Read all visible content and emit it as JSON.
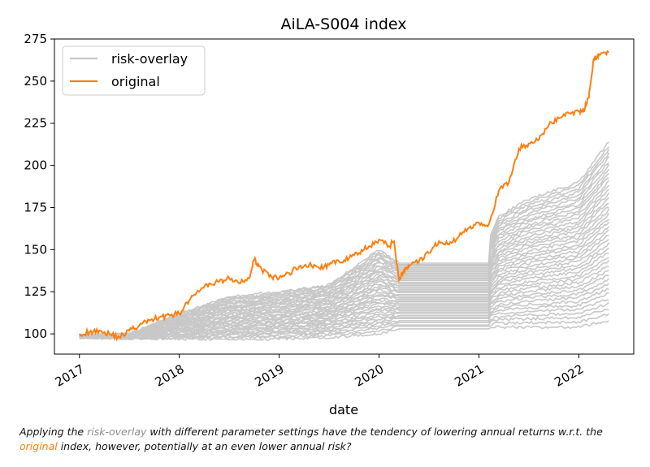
{
  "chart_data": {
    "type": "line",
    "title": "AiLA-S004 index",
    "xlabel": "date",
    "ylabel": "",
    "x_ticks": [
      "2017",
      "2018",
      "2019",
      "2020",
      "2021",
      "2022"
    ],
    "y_ticks": [
      100,
      125,
      150,
      175,
      200,
      225,
      250,
      275
    ],
    "xlim": [
      2016.75,
      2022.55
    ],
    "ylim": [
      88,
      275
    ],
    "legend_position": "top-left",
    "colors": {
      "risk_overlay": "#c8c8c8",
      "original": "#ff7f0e"
    },
    "series": [
      {
        "name": "original",
        "x": [
          2017.0,
          2017.1,
          2017.2,
          2017.3,
          2017.4,
          2017.5,
          2017.6,
          2017.7,
          2017.8,
          2017.9,
          2018.0,
          2018.1,
          2018.2,
          2018.3,
          2018.4,
          2018.5,
          2018.6,
          2018.7,
          2018.75,
          2018.8,
          2018.9,
          2019.0,
          2019.1,
          2019.2,
          2019.3,
          2019.4,
          2019.5,
          2019.6,
          2019.7,
          2019.8,
          2019.9,
          2020.0,
          2020.1,
          2020.15,
          2020.2,
          2020.25,
          2020.3,
          2020.4,
          2020.5,
          2020.6,
          2020.7,
          2020.8,
          2020.9,
          2021.0,
          2021.1,
          2021.2,
          2021.3,
          2021.4,
          2021.5,
          2021.6,
          2021.7,
          2021.8,
          2021.9,
          2022.0,
          2022.05,
          2022.1,
          2022.15,
          2022.2,
          2022.3
        ],
        "y": [
          100,
          101,
          102,
          100,
          98,
          102,
          105,
          108,
          110,
          111,
          112,
          120,
          125,
          130,
          131,
          133,
          130,
          133,
          144,
          140,
          134,
          133,
          136,
          140,
          141,
          139,
          141,
          143,
          145,
          148,
          152,
          156,
          152,
          155,
          132,
          138,
          140,
          143,
          148,
          155,
          153,
          158,
          163,
          166,
          165,
          185,
          190,
          210,
          213,
          215,
          224,
          228,
          231,
          232,
          233,
          240,
          263,
          266,
          267
        ]
      },
      {
        "name": "risk-overlay",
        "x": [
          2017.0,
          2017.5,
          2018.0,
          2018.5,
          2019.0,
          2019.5,
          2020.0,
          2020.2,
          2020.5,
          2021.0,
          2021.2,
          2021.5,
          2022.0,
          2022.3
        ],
        "lower": [
          98,
          97,
          97,
          97,
          97,
          98,
          100,
          103,
          103,
          103,
          104,
          104,
          104,
          108
        ],
        "upper": [
          99,
          100,
          112,
          122,
          125,
          129,
          150,
          142,
          142,
          142,
          170,
          180,
          190,
          214
        ]
      }
    ]
  },
  "caption": {
    "part1": "Applying the ",
    "term1": "risk-overlay",
    "part2": " with different parameter settings have the tendency of lowering annual returns w.r.t. the ",
    "term2": "original",
    "part3": " index, however, potentially at an even lower annual risk?"
  }
}
